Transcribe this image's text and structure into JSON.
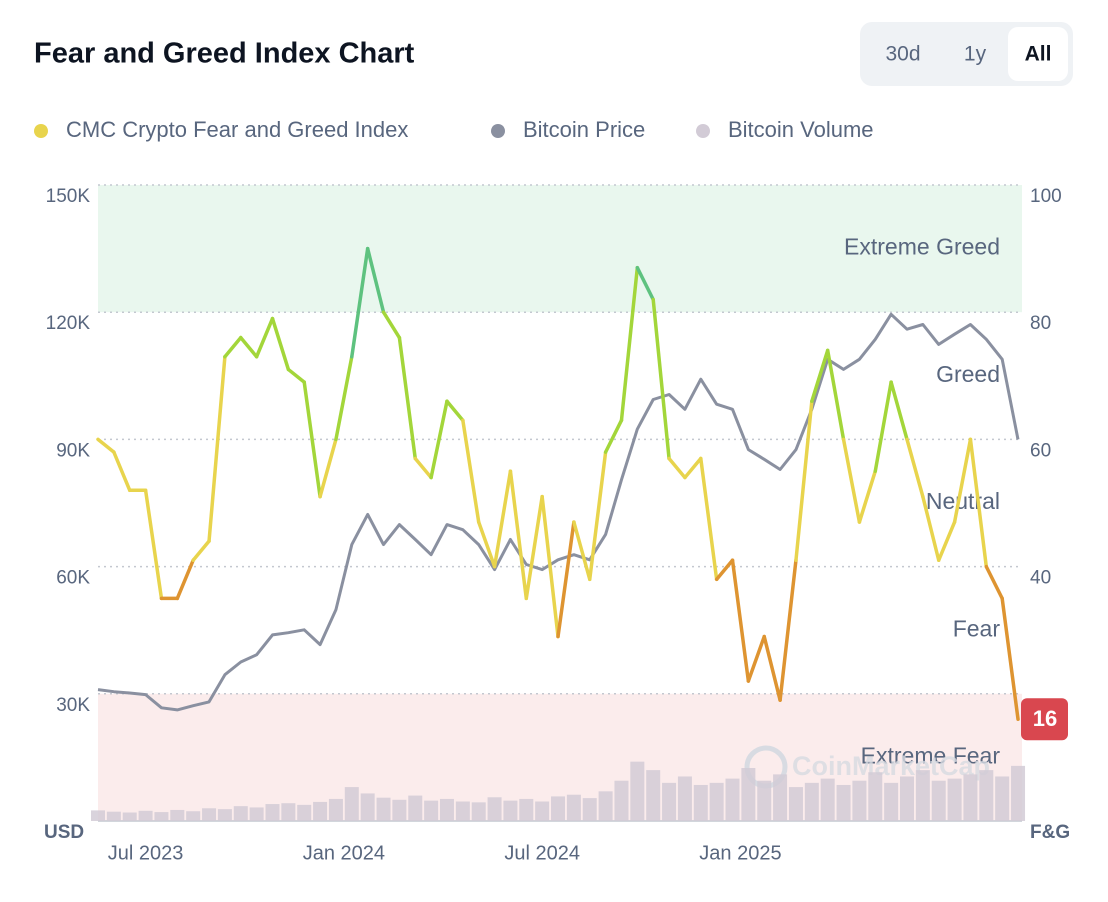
{
  "chart_data": {
    "type": "line",
    "title": "Fear and Greed Index Chart",
    "x": [
      2023.38,
      2023.42,
      2023.46,
      2023.5,
      2023.54,
      2023.58,
      2023.62,
      2023.66,
      2023.7,
      2023.74,
      2023.78,
      2023.82,
      2023.86,
      2023.9,
      2023.94,
      2023.98,
      2024.02,
      2024.06,
      2024.1,
      2024.14,
      2024.18,
      2024.22,
      2024.26,
      2024.3,
      2024.34,
      2024.38,
      2024.42,
      2024.46,
      2024.5,
      2024.54,
      2024.58,
      2024.62,
      2024.66,
      2024.7,
      2024.74,
      2024.78,
      2024.82,
      2024.86,
      2024.9,
      2024.94,
      2024.98,
      2025.02,
      2025.06,
      2025.1,
      2025.14,
      2025.18,
      2025.22,
      2025.26,
      2025.3,
      2025.34,
      2025.38,
      2025.42,
      2025.46,
      2025.5,
      2025.54,
      2025.58,
      2025.62,
      2025.66,
      2025.7
    ],
    "xlim": [
      2023.38,
      2025.71
    ],
    "xticks": [
      {
        "value": 2023.5,
        "label": "Jul 2023"
      },
      {
        "value": 2024.0,
        "label": "Jan 2024"
      },
      {
        "value": 2024.5,
        "label": "Jul 2024"
      },
      {
        "value": 2025.0,
        "label": "Jan 2025"
      }
    ],
    "y_label": "USD",
    "ylim": [
      0,
      150000
    ],
    "yticks": [
      {
        "value": 30000,
        "label": "30K"
      },
      {
        "value": 60000,
        "label": "60K"
      },
      {
        "value": 90000,
        "label": "90K"
      },
      {
        "value": 120000,
        "label": "120K"
      },
      {
        "value": 150000,
        "label": "150K"
      }
    ],
    "y2_label": "F&G",
    "y2lim": [
      0,
      100
    ],
    "y2ticks": [
      40,
      60,
      80,
      100
    ],
    "grid": true,
    "series": [
      {
        "name": "CMC Crypto Fear and Greed Index",
        "color": "#e8d44d",
        "axis": "y2",
        "values": [
          60,
          58,
          52,
          52,
          35,
          35,
          41,
          44,
          73,
          76,
          73,
          79,
          71,
          69,
          51,
          60,
          73,
          90,
          80,
          76,
          57,
          54,
          66,
          63,
          47,
          40,
          55,
          35,
          51,
          29,
          47,
          38,
          58,
          63,
          87,
          82,
          57,
          54,
          57,
          38,
          41,
          22,
          29,
          19,
          41,
          66,
          74,
          60,
          47,
          55,
          69,
          60,
          51,
          41,
          47,
          60,
          40,
          35,
          16
        ]
      },
      {
        "name": "Bitcoin Price",
        "color": "#8a90a0",
        "axis": "y",
        "values": [
          31000,
          30500,
          30200,
          29800,
          26700,
          26200,
          27200,
          28100,
          34500,
          37500,
          39200,
          43900,
          44400,
          45100,
          41600,
          49800,
          65200,
          72300,
          65200,
          69900,
          66400,
          62800,
          69900,
          68700,
          65200,
          59300,
          66400,
          60500,
          59300,
          61600,
          62800,
          61600,
          67600,
          80500,
          92400,
          99400,
          100600,
          97100,
          104200,
          98300,
          97100,
          87600,
          85300,
          82900,
          87600,
          97100,
          108900,
          106500,
          108900,
          113600,
          119500,
          116000,
          117100,
          112400,
          114800,
          117100,
          113600,
          108900,
          90000
        ]
      },
      {
        "name": "Bitcoin Volume",
        "color": "#d2cbd6",
        "axis": "y",
        "values": [
          2500,
          2200,
          2000,
          2400,
          2100,
          2600,
          2300,
          3000,
          2800,
          3500,
          3200,
          4000,
          4200,
          3800,
          4500,
          5200,
          8000,
          6500,
          5500,
          5000,
          6000,
          4800,
          5200,
          4600,
          4400,
          5600,
          4800,
          5200,
          4600,
          5800,
          6200,
          5400,
          7000,
          9500,
          14000,
          12000,
          9000,
          10500,
          8500,
          9000,
          10000,
          12500,
          9500,
          11000,
          8000,
          9000,
          10000,
          8500,
          9500,
          11500,
          9000,
          10500,
          12000,
          9500,
          10000,
          11000,
          12000,
          10500,
          13000
        ]
      }
    ],
    "latest_value_label": "16",
    "zones": [
      {
        "label": "Extreme Greed",
        "from": 80,
        "to": 100,
        "color": "#e9f7ee",
        "line_color": "#5ec27f"
      },
      {
        "label": "Greed",
        "from": 60,
        "to": 80,
        "line_color": "#a3d63a"
      },
      {
        "label": "Neutral",
        "from": 40,
        "to": 60,
        "line_color": "#e8d44d"
      },
      {
        "label": "Fear",
        "from": 20,
        "to": 40,
        "line_color": "#de9431"
      },
      {
        "label": "Extreme Fear",
        "from": 0,
        "to": 20,
        "color": "#fbecec",
        "line_color": "#d9474f"
      }
    ],
    "watermark": "CoinMarketCap"
  },
  "controls": {
    "range_buttons": [
      "30d",
      "1y",
      "All"
    ],
    "selected": "All"
  }
}
